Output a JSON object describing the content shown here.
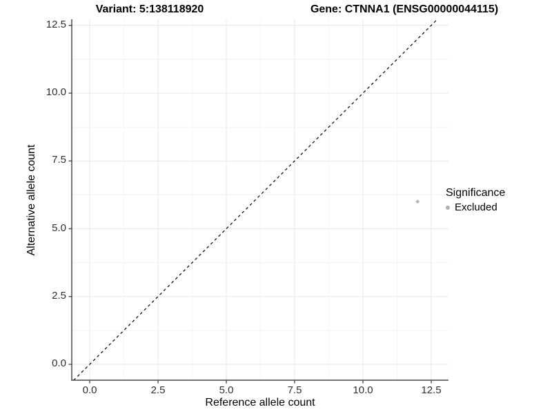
{
  "chart_data": {
    "type": "scatter",
    "title_left": "Variant: 5:138118920",
    "title_right": "Gene: CTNNA1 (ENSG00000044115)",
    "xlabel": "Reference allele count",
    "ylabel": "Alternative allele count",
    "xlim": [
      -0.66,
      13.13
    ],
    "ylim": [
      -0.59,
      12.72
    ],
    "xticks": [
      0,
      2.5,
      5,
      7.5,
      10,
      12.5
    ],
    "yticks": [
      0,
      2.5,
      5,
      7.5,
      10,
      12.5
    ],
    "grid": {
      "major_color": "#e7e7e7",
      "minor_color": "#f3f3f3",
      "minor": true
    },
    "theme": {
      "axis_color": "#464646",
      "tick_text_color": "#2e2e2e",
      "background": "#ffffff"
    },
    "reference_line": {
      "slope": 1,
      "intercept": 0,
      "style": "dashed",
      "color": "#000000"
    },
    "series": [
      {
        "name": "Excluded",
        "color": "#b8b8b8",
        "points": [
          [
            12,
            6
          ]
        ]
      }
    ],
    "legend": {
      "title": "Significance",
      "position": "right",
      "entries": [
        {
          "label": "Excluded",
          "color": "#b0b0b0"
        }
      ]
    }
  }
}
